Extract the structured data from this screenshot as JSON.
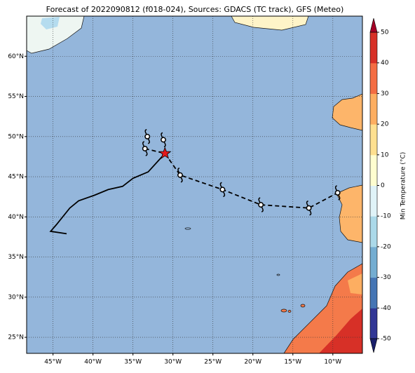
{
  "chart_data": {
    "type": "map",
    "title": "Forecast of 2022090812 (f018-024), Sources: GDACS (TC track), GFS (Meteo)",
    "xlim": [
      -48.3,
      -6.3
    ],
    "ylim": [
      23,
      65
    ],
    "xticks": [
      {
        "value": -45,
        "label": "45°W"
      },
      {
        "value": -40,
        "label": "40°W"
      },
      {
        "value": -35,
        "label": "35°W"
      },
      {
        "value": -30,
        "label": "30°W"
      },
      {
        "value": -25,
        "label": "25°W"
      },
      {
        "value": -20,
        "label": "20°W"
      },
      {
        "value": -15,
        "label": "15°W"
      },
      {
        "value": -10,
        "label": "10°W"
      }
    ],
    "yticks": [
      {
        "value": 25,
        "label": "25°N"
      },
      {
        "value": 30,
        "label": "30°N"
      },
      {
        "value": 35,
        "label": "35°N"
      },
      {
        "value": 40,
        "label": "40°N"
      },
      {
        "value": 45,
        "label": "45°N"
      },
      {
        "value": 50,
        "label": "50°N"
      },
      {
        "value": 55,
        "label": "55°N"
      },
      {
        "value": 60,
        "label": "60°N"
      }
    ],
    "grid": true,
    "past_track": {
      "color": "#000000",
      "lon": [
        -43.3,
        -45.3,
        -44.6,
        -42.9,
        -41.8,
        -39.8,
        -38.1,
        -36.3,
        -35.0,
        -33.1,
        -31.0
      ],
      "lat": [
        37.9,
        38.2,
        39.0,
        41.1,
        42.0,
        42.7,
        43.4,
        43.8,
        44.8,
        45.6,
        47.9
      ]
    },
    "forecast_track": {
      "color": "#000000",
      "lon": [
        -33.5,
        -31.0,
        -29.1,
        -23.8,
        -19.0,
        -13.0,
        -9.4
      ],
      "lat": [
        48.5,
        47.9,
        45.2,
        43.4,
        41.5,
        41.1,
        43.0
      ]
    },
    "storm_symbols": {
      "lon": [
        -33.2,
        -31.2,
        -33.5,
        -29.1,
        -23.8,
        -19.0,
        -13.0,
        -9.4
      ],
      "lat": [
        50.0,
        49.6,
        48.5,
        45.2,
        43.4,
        41.5,
        41.1,
        43.0
      ]
    },
    "current_position": {
      "lon": -31.0,
      "lat": 47.9,
      "color": "#e41a1c"
    },
    "colorbar": {
      "label": "Min Temperature (°C)",
      "lim": [
        -50,
        50
      ],
      "ticks": [
        -50,
        -40,
        -30,
        -20,
        -10,
        0,
        10,
        20,
        30,
        40,
        50
      ],
      "colors": [
        "#313695",
        "#4575b4",
        "#74add1",
        "#abd9e9",
        "#e0f3f8",
        "#fffed0",
        "#fee090",
        "#fdae61",
        "#f46d43",
        "#d73027"
      ],
      "under_color": "#1a1f6b",
      "over_color": "#a50026"
    }
  }
}
